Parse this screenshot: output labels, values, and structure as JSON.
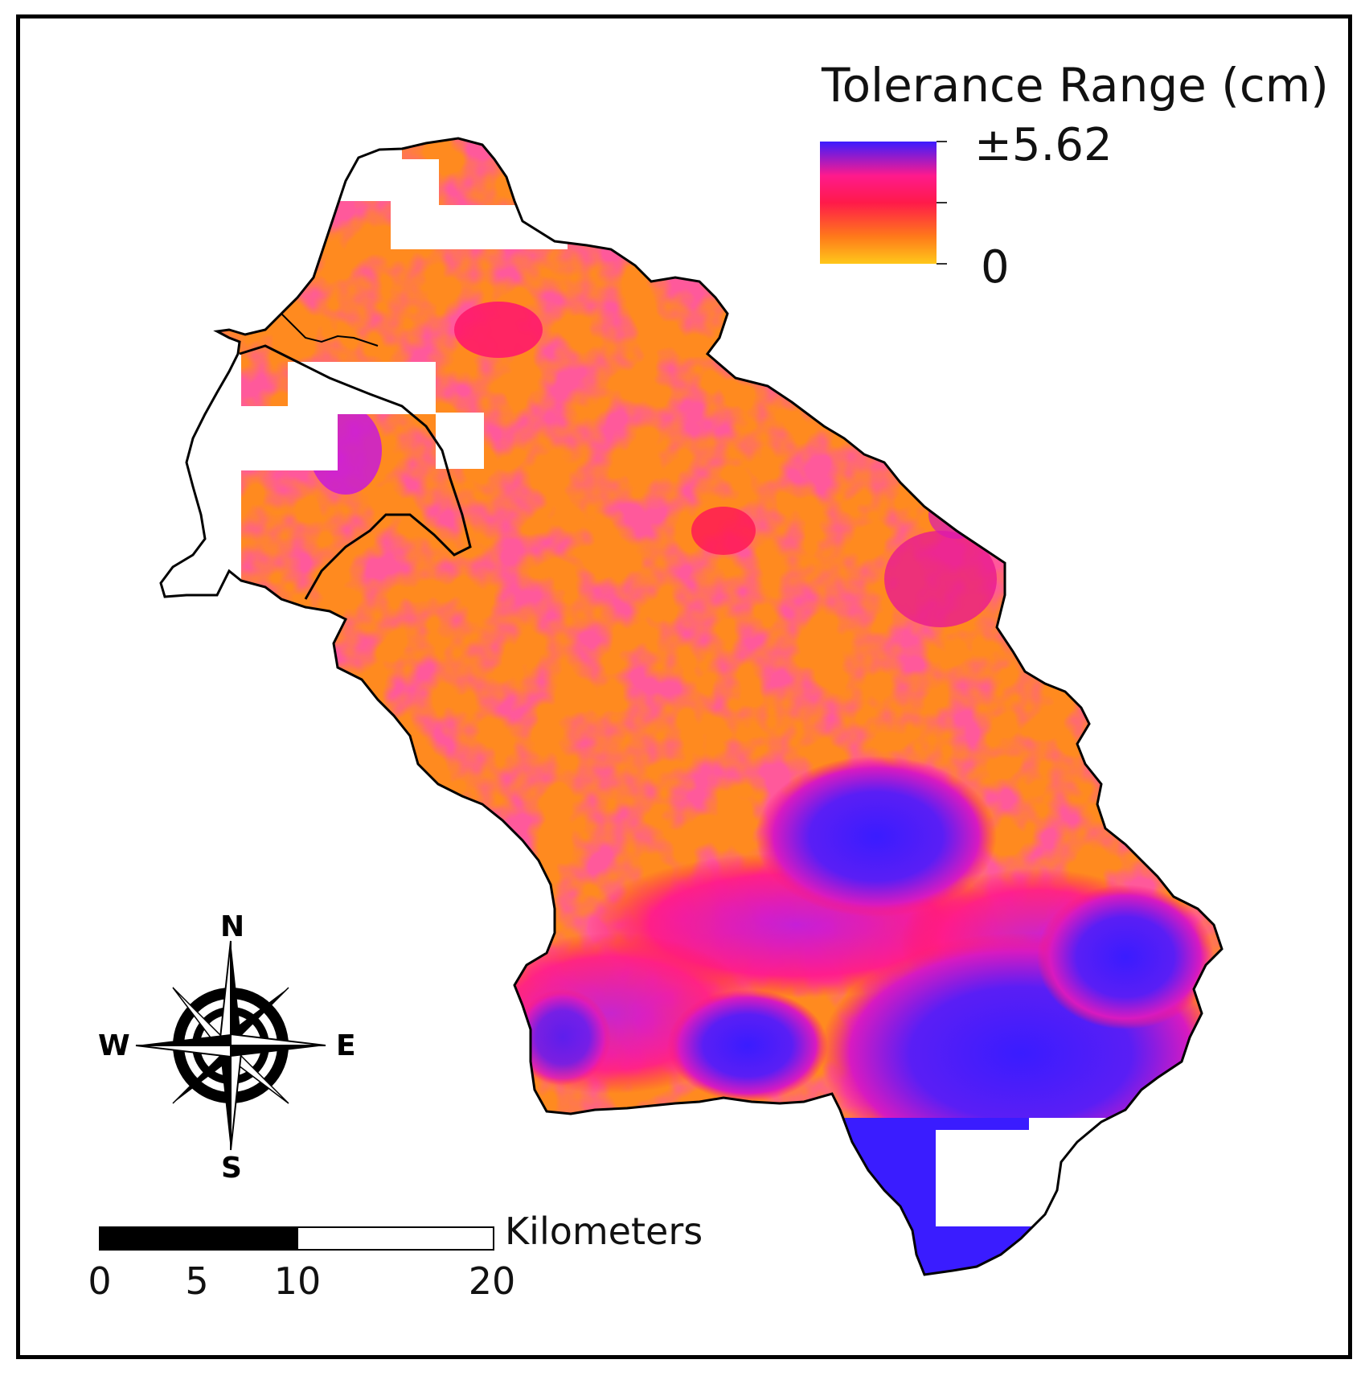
{
  "legend": {
    "title": "Tolerance Range (cm)",
    "max_label": "±5.62",
    "min_label": "0",
    "colors": {
      "high": "#3b1cff",
      "mid_high": "#ff1a8c",
      "mid": "#ff1a4a",
      "mid_low": "#ff7a1a",
      "low": "#ffc81a"
    }
  },
  "compass": {
    "north": "N",
    "south": "S",
    "east": "E",
    "west": "W"
  },
  "scalebar": {
    "unit": "Kilometers",
    "ticks": [
      "0",
      "5",
      "10",
      "20"
    ]
  },
  "map_colors": {
    "base_orange": "#ff8a1f",
    "patch_red": "#ff1a55",
    "patch_magenta": "#e81ab0",
    "patch_violet": "#5a1ef5",
    "boundary": "#000000"
  }
}
